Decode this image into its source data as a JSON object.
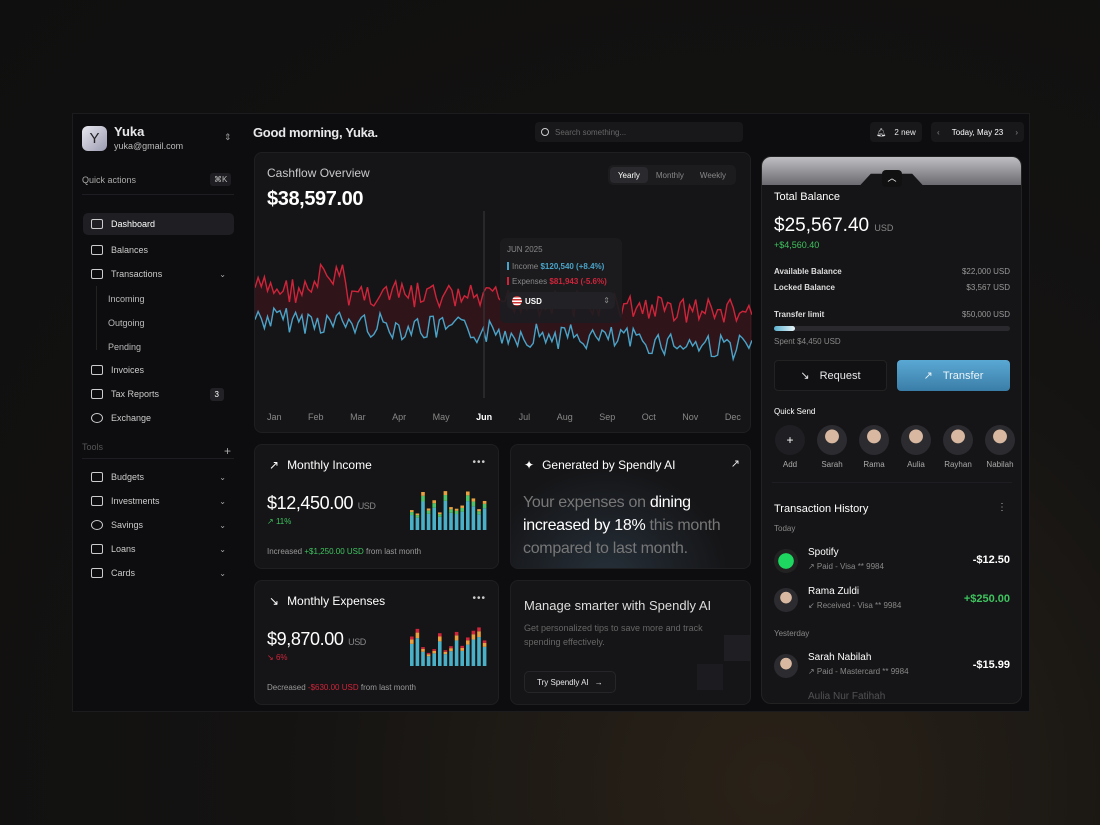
{
  "user": {
    "initial": "Y",
    "name": "Yuka",
    "email": "yuka@gmail.com"
  },
  "sidebar": {
    "quick_actions": "Quick actions",
    "shortcut": "⌘K",
    "items": [
      {
        "label": "Dashboard",
        "icon": "home-icon",
        "active": true
      },
      {
        "label": "Balances",
        "icon": "wallet-icon"
      },
      {
        "label": "Transactions",
        "icon": "transfer-icon",
        "expanded": true
      },
      {
        "label": "Invoices",
        "icon": "receipt-icon"
      },
      {
        "label": "Tax Reports",
        "icon": "report-icon",
        "badge": "3"
      },
      {
        "label": "Exchange",
        "icon": "exchange-icon"
      }
    ],
    "sub_items": [
      "Incoming",
      "Outgoing",
      "Pending"
    ],
    "tools_label": "Tools",
    "tools": [
      {
        "label": "Budgets",
        "icon": "budget-icon"
      },
      {
        "label": "Investments",
        "icon": "chart-icon"
      },
      {
        "label": "Savings",
        "icon": "piggy-bank-icon"
      },
      {
        "label": "Loans",
        "icon": "bag-icon"
      },
      {
        "label": "Cards",
        "icon": "card-icon"
      }
    ]
  },
  "header": {
    "greeting": "Good morning, Yuka.",
    "search_placeholder": "Search something...",
    "notifications": "2 new",
    "date": "Today, May 23"
  },
  "cashflow": {
    "title": "Cashflow Overview",
    "total": "$38,597.00",
    "tabs": [
      "Yearly",
      "Monthly",
      "Weekly"
    ],
    "active_tab": "Yearly",
    "months": [
      "Jan",
      "Feb",
      "Mar",
      "Apr",
      "May",
      "Jun",
      "Jul",
      "Aug",
      "Sep",
      "Oct",
      "Nov",
      "Dec"
    ],
    "current_month": "Jun",
    "tooltip": {
      "period": "JUN 2025",
      "income_label": "Income",
      "income_value": "$120,540 (+8.4%)",
      "expenses_label": "Expenses",
      "expenses_value": "$81,943 (-5.6%)",
      "currency": "USD"
    },
    "colors": {
      "income": "#4aa3c8",
      "expenses": "#d0243a"
    }
  },
  "income_card": {
    "title": "Monthly Income",
    "value": "$12,450.00",
    "unit": "USD",
    "change": "11%",
    "footer_pre": "Increased",
    "footer_amount": "+$1,250.00 USD",
    "footer_post": "from last month"
  },
  "expense_card": {
    "title": "Monthly Expenses",
    "value": "$9,870.00",
    "unit": "USD",
    "change": "6%",
    "footer_pre": "Decreased",
    "footer_amount": "-$630.00 USD",
    "footer_post": "from last month"
  },
  "ai_card": {
    "title": "Generated by Spendly AI",
    "t1": "Your expenses on",
    "t2": "dining increased by 18%",
    "t3": "this month compared to last month."
  },
  "promo_card": {
    "title": "Manage smarter with Spendly AI",
    "desc": "Get personalized tips to save more and track spending effectively.",
    "button": "Try Spendly AI"
  },
  "balance": {
    "title": "Total Balance",
    "value": "$25,567.40",
    "unit": "USD",
    "change": "+$4,560.40",
    "available_label": "Available Balance",
    "available": "$22,000 USD",
    "locked_label": "Locked Balance",
    "locked": "$3,567 USD",
    "limit_label": "Transfer limit",
    "limit": "$50,000 USD",
    "spent": "Spent $4,450 USD",
    "limit_used_pct": 9,
    "request": "Request",
    "transfer": "Transfer"
  },
  "quick_send": {
    "title": "Quick Send",
    "add": "Add",
    "people": [
      "Sarah",
      "Rama",
      "Aulia",
      "Rayhan",
      "Nabilah"
    ]
  },
  "history": {
    "title": "Transaction History",
    "today": "Today",
    "yesterday": "Yesterday",
    "items": [
      {
        "name": "Spotify",
        "meta": "↗ Paid - Visa ** 9984",
        "amount": "-$12.50"
      },
      {
        "name": "Rama Zuldi",
        "meta": "↙ Received - Visa ** 9984",
        "amount": "+$250.00"
      },
      {
        "name": "Sarah Nabilah",
        "meta": "↗ Paid - Mastercard ** 9984",
        "amount": "-$15.99"
      },
      {
        "name": "Aulia Nur Fatihah"
      }
    ]
  }
}
